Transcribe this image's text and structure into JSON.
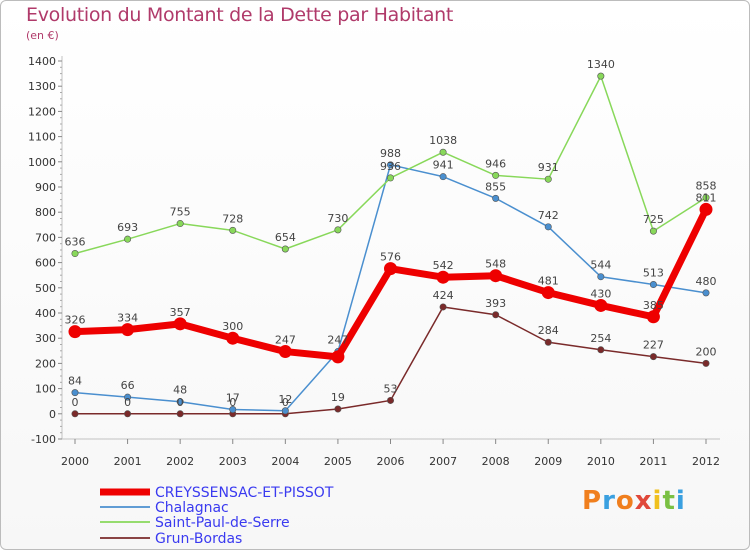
{
  "header": {
    "title": "Evolution du Montant de la Dette par Habitant",
    "subtitle": "(en €)"
  },
  "logo": {
    "text": "Proxiti",
    "colors": [
      "#f07f1e",
      "#3aa0e0",
      "#f07f1e",
      "#e0483a",
      "#f0c01e",
      "#7ac043",
      "#3aa0e0"
    ]
  },
  "chart_data": {
    "type": "line",
    "title": "Evolution du Montant de la Dette par Habitant",
    "subtitle": "(en €)",
    "x": [
      "2000",
      "2001",
      "2002",
      "2003",
      "2004",
      "2005",
      "2006",
      "2007",
      "2008",
      "2009",
      "2010",
      "2011",
      "2012"
    ],
    "ylim": [
      -100,
      1400
    ],
    "yticks": [
      -100,
      0,
      100,
      200,
      300,
      400,
      500,
      600,
      700,
      800,
      900,
      1000,
      1100,
      1200,
      1300,
      1400
    ],
    "grid": false,
    "legend_position": "bottom-left",
    "series": [
      {
        "name": "CREYSSENSAC-ET-PISSOT",
        "color": "#ee0000",
        "values": [
          326,
          334,
          357,
          300,
          247,
          226,
          576,
          542,
          548,
          481,
          430,
          385,
          811
        ],
        "labels": [
          "326",
          "334",
          "357",
          "300",
          "247",
          "",
          "576",
          "542",
          "548",
          "481",
          "430",
          "385",
          "811"
        ]
      },
      {
        "name": "Chalagnac",
        "color": "#4a8fcf",
        "values": [
          84,
          66,
          48,
          17,
          12,
          247,
          988,
          941,
          855,
          742,
          544,
          513,
          480
        ],
        "labels": [
          "84",
          "66",
          "48",
          "17",
          "12",
          "247",
          "988",
          "941",
          "855",
          "742",
          "544",
          "513",
          "480"
        ]
      },
      {
        "name": "Saint-Paul-de-Serre",
        "color": "#88d85a",
        "values": [
          636,
          693,
          755,
          728,
          654,
          730,
          936,
          1038,
          946,
          931,
          1340,
          725,
          858
        ],
        "labels": [
          "636",
          "693",
          "755",
          "728",
          "654",
          "730",
          "936",
          "1038",
          "946",
          "931",
          "1340",
          "725",
          "858"
        ]
      },
      {
        "name": "Grun-Bordas",
        "color": "#7a2a2a",
        "values": [
          0,
          0,
          0,
          0,
          0,
          19,
          53,
          424,
          393,
          284,
          254,
          227,
          200
        ],
        "labels": [
          "0",
          "0",
          "0",
          "0",
          "0",
          "19",
          "53",
          "424",
          "393",
          "284",
          "254",
          "227",
          "200"
        ]
      }
    ]
  }
}
